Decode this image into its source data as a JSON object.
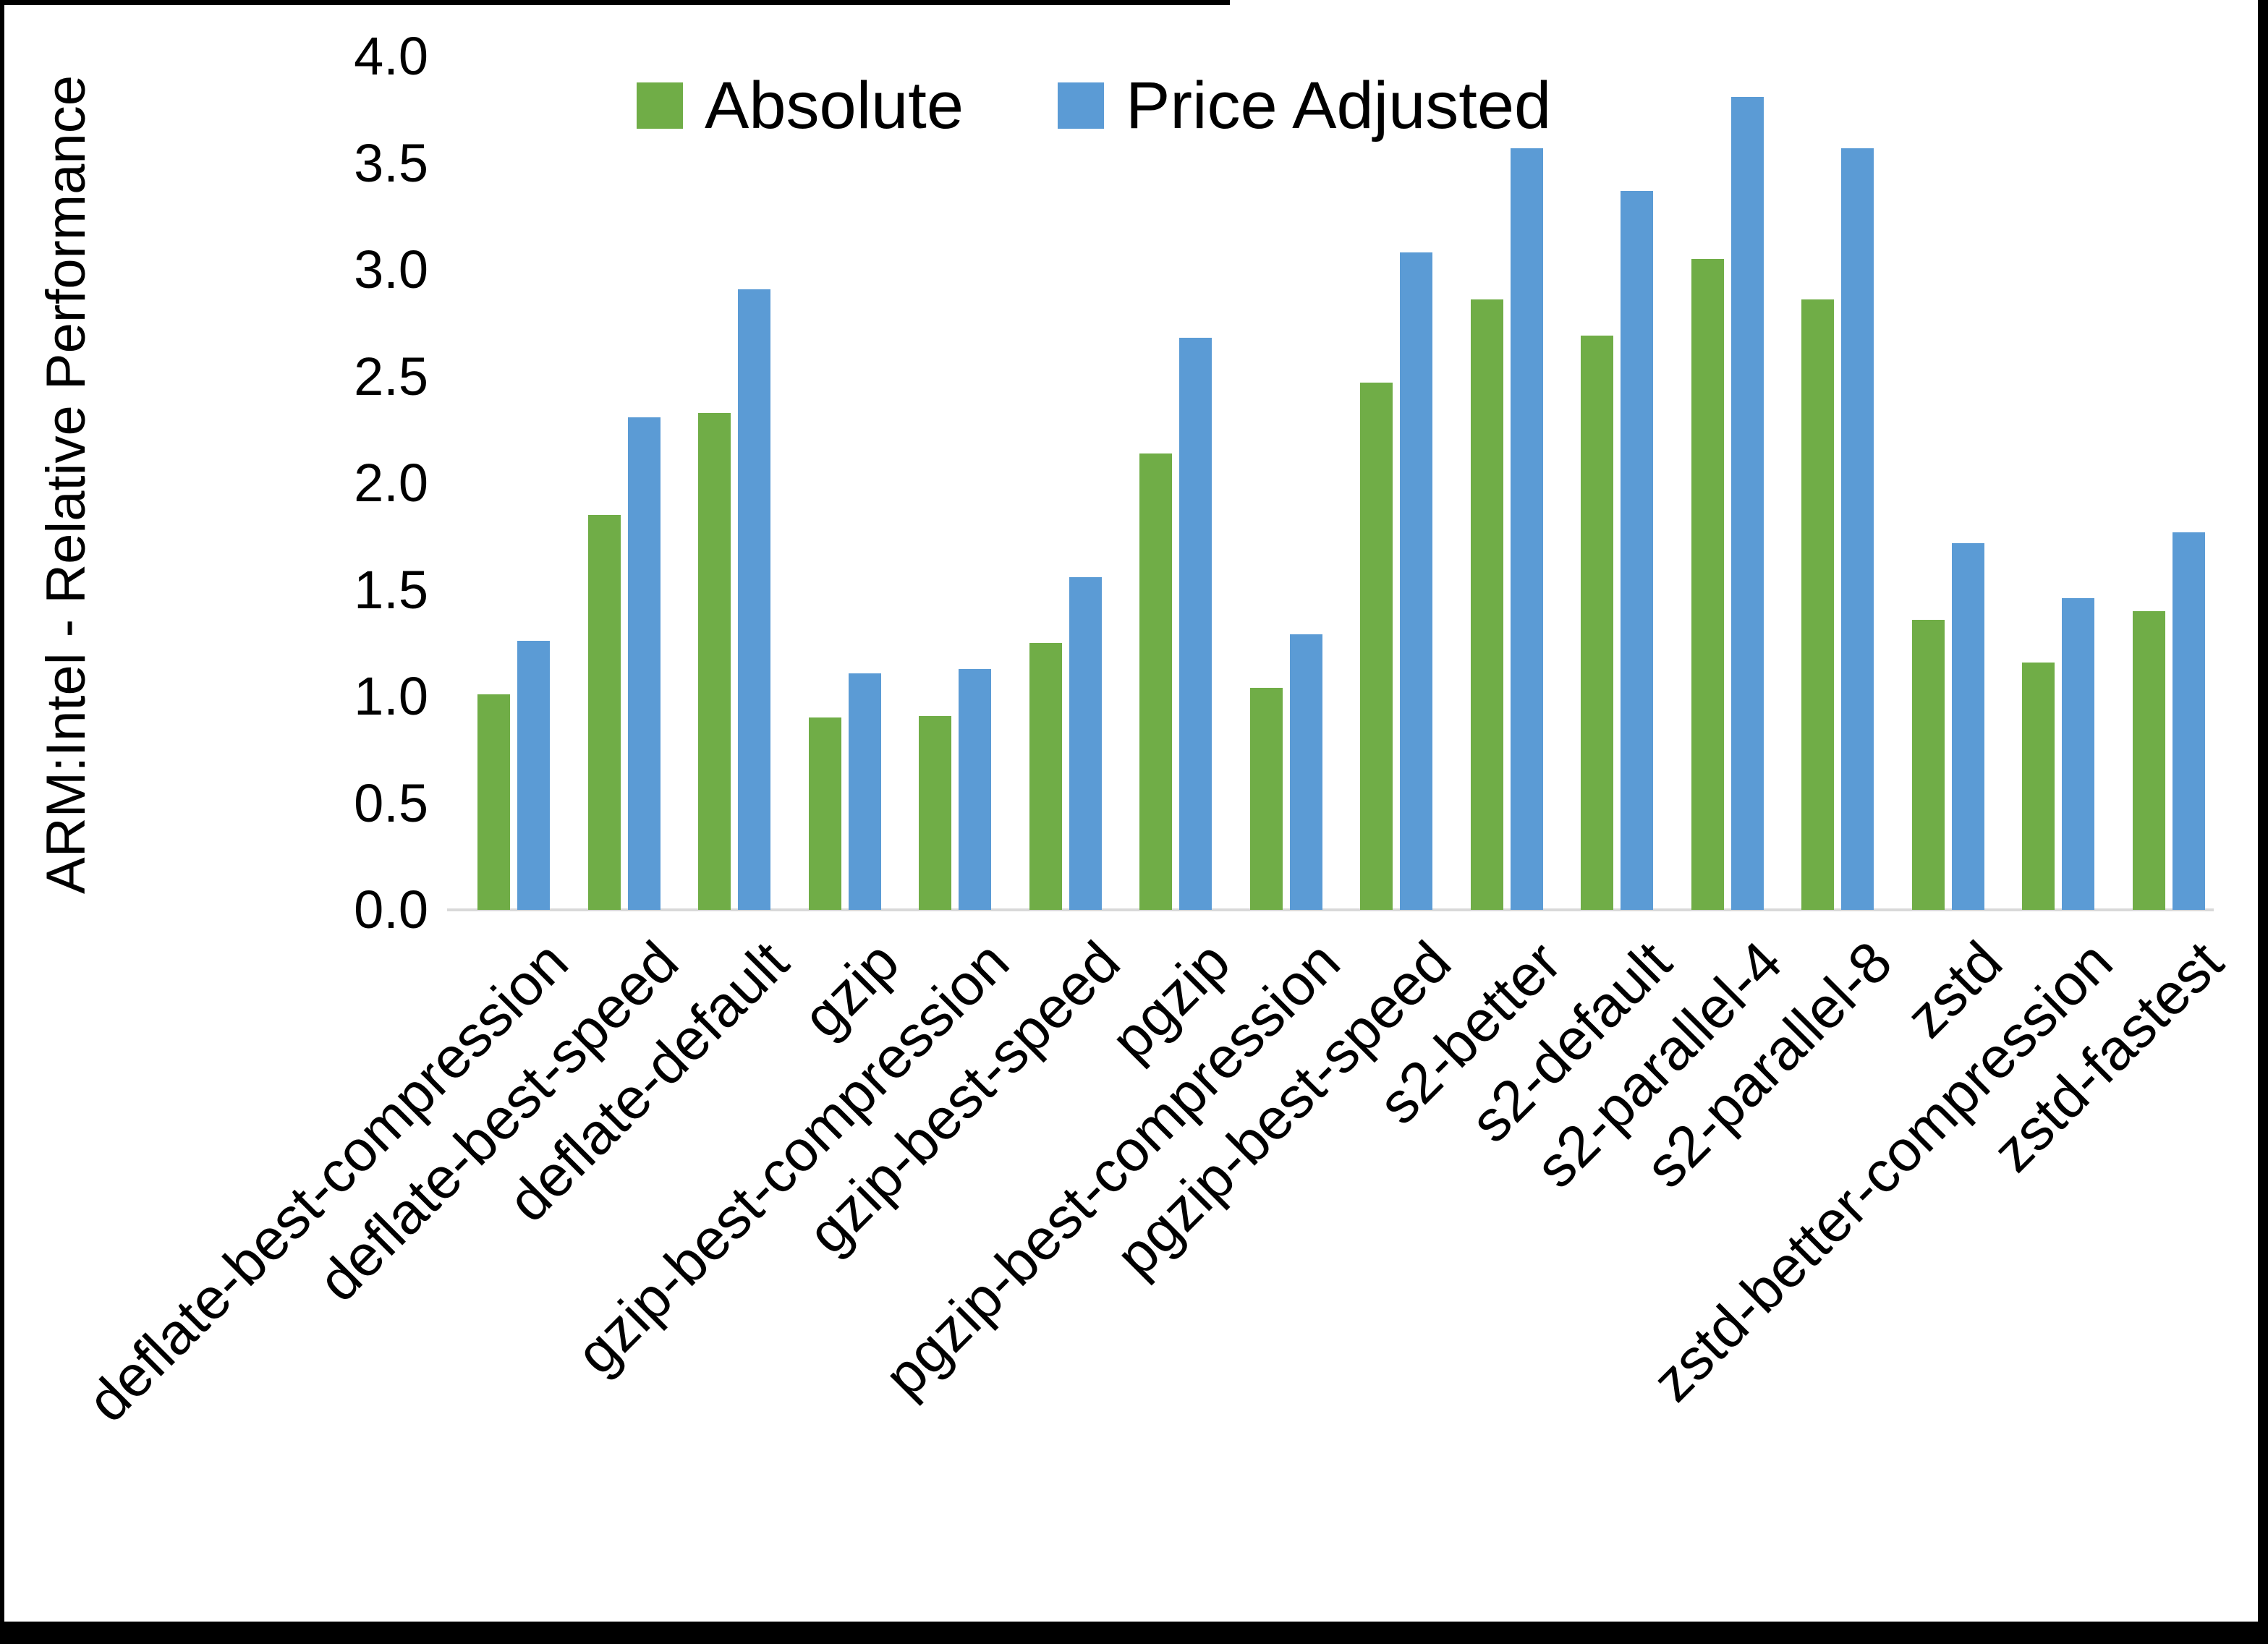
{
  "frame": {
    "color": "#000000"
  },
  "chart_data": {
    "type": "bar",
    "title": "",
    "ylabel": "ARM:Intel - Relative Performance",
    "xlabel": "",
    "ylim": [
      0.0,
      4.0
    ],
    "ytick_step": 0.5,
    "yticks": [
      "0.0",
      "0.5",
      "1.0",
      "1.5",
      "2.0",
      "2.5",
      "3.0",
      "3.5",
      "4.0"
    ],
    "grid": false,
    "legend_position": "top-center",
    "axis_line_color": "#d9d9d9",
    "text_color": "#000000",
    "background_color": "#ffffff",
    "categories": [
      "deflate-best-compression",
      "deflate-best-speed",
      "deflate-default",
      "gzip",
      "gzip-best-compression",
      "gzip-best-speed",
      "pgzip",
      "pgzip-best-compression",
      "pgzip-best-speed",
      "s2-better",
      "s2-default",
      "s2-parallel-4",
      "s2-parallel-8",
      "zstd",
      "zstd-better-compression",
      "zstd-fastest"
    ],
    "series": [
      {
        "name": "Absolute",
        "color": "#70AD47",
        "values": [
          1.01,
          1.85,
          2.33,
          0.9,
          0.91,
          1.25,
          2.14,
          1.04,
          2.47,
          2.86,
          2.69,
          3.05,
          2.86,
          1.36,
          1.16,
          1.4
        ]
      },
      {
        "name": "Price Adjusted",
        "color": "#5B9BD5",
        "values": [
          1.26,
          2.31,
          2.91,
          1.11,
          1.13,
          1.56,
          2.68,
          1.29,
          3.08,
          3.57,
          3.37,
          3.81,
          3.57,
          1.72,
          1.46,
          1.77
        ]
      }
    ]
  }
}
